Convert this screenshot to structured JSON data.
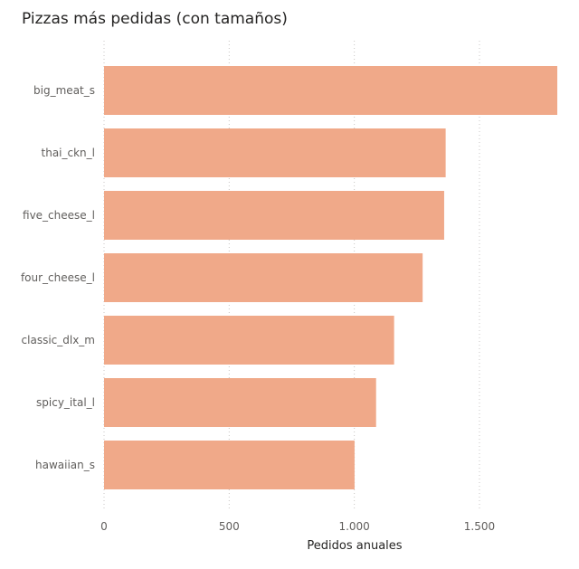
{
  "chart_data": {
    "type": "bar",
    "orientation": "horizontal",
    "title": "Pizzas más pedidas (con tamaños)",
    "xlabel": "Pedidos anuales",
    "ylabel": "",
    "categories": [
      "big_meat_s",
      "thai_ckn_l",
      "five_cheese_l",
      "four_cheese_l",
      "classic_dlx_m",
      "spicy_ital_l",
      "hawaiian_s"
    ],
    "values": [
      1811,
      1365,
      1359,
      1273,
      1159,
      1087,
      1001
    ],
    "xlim": [
      0,
      1811
    ],
    "xticks": [
      0,
      500,
      1000,
      1500
    ],
    "xtick_labels": [
      "0",
      "500",
      "1.000",
      "1.500"
    ],
    "grid": "vertical-dotted",
    "legend": "none",
    "bar_color": "#F0A989",
    "grid_color": "#C8C6C4"
  }
}
